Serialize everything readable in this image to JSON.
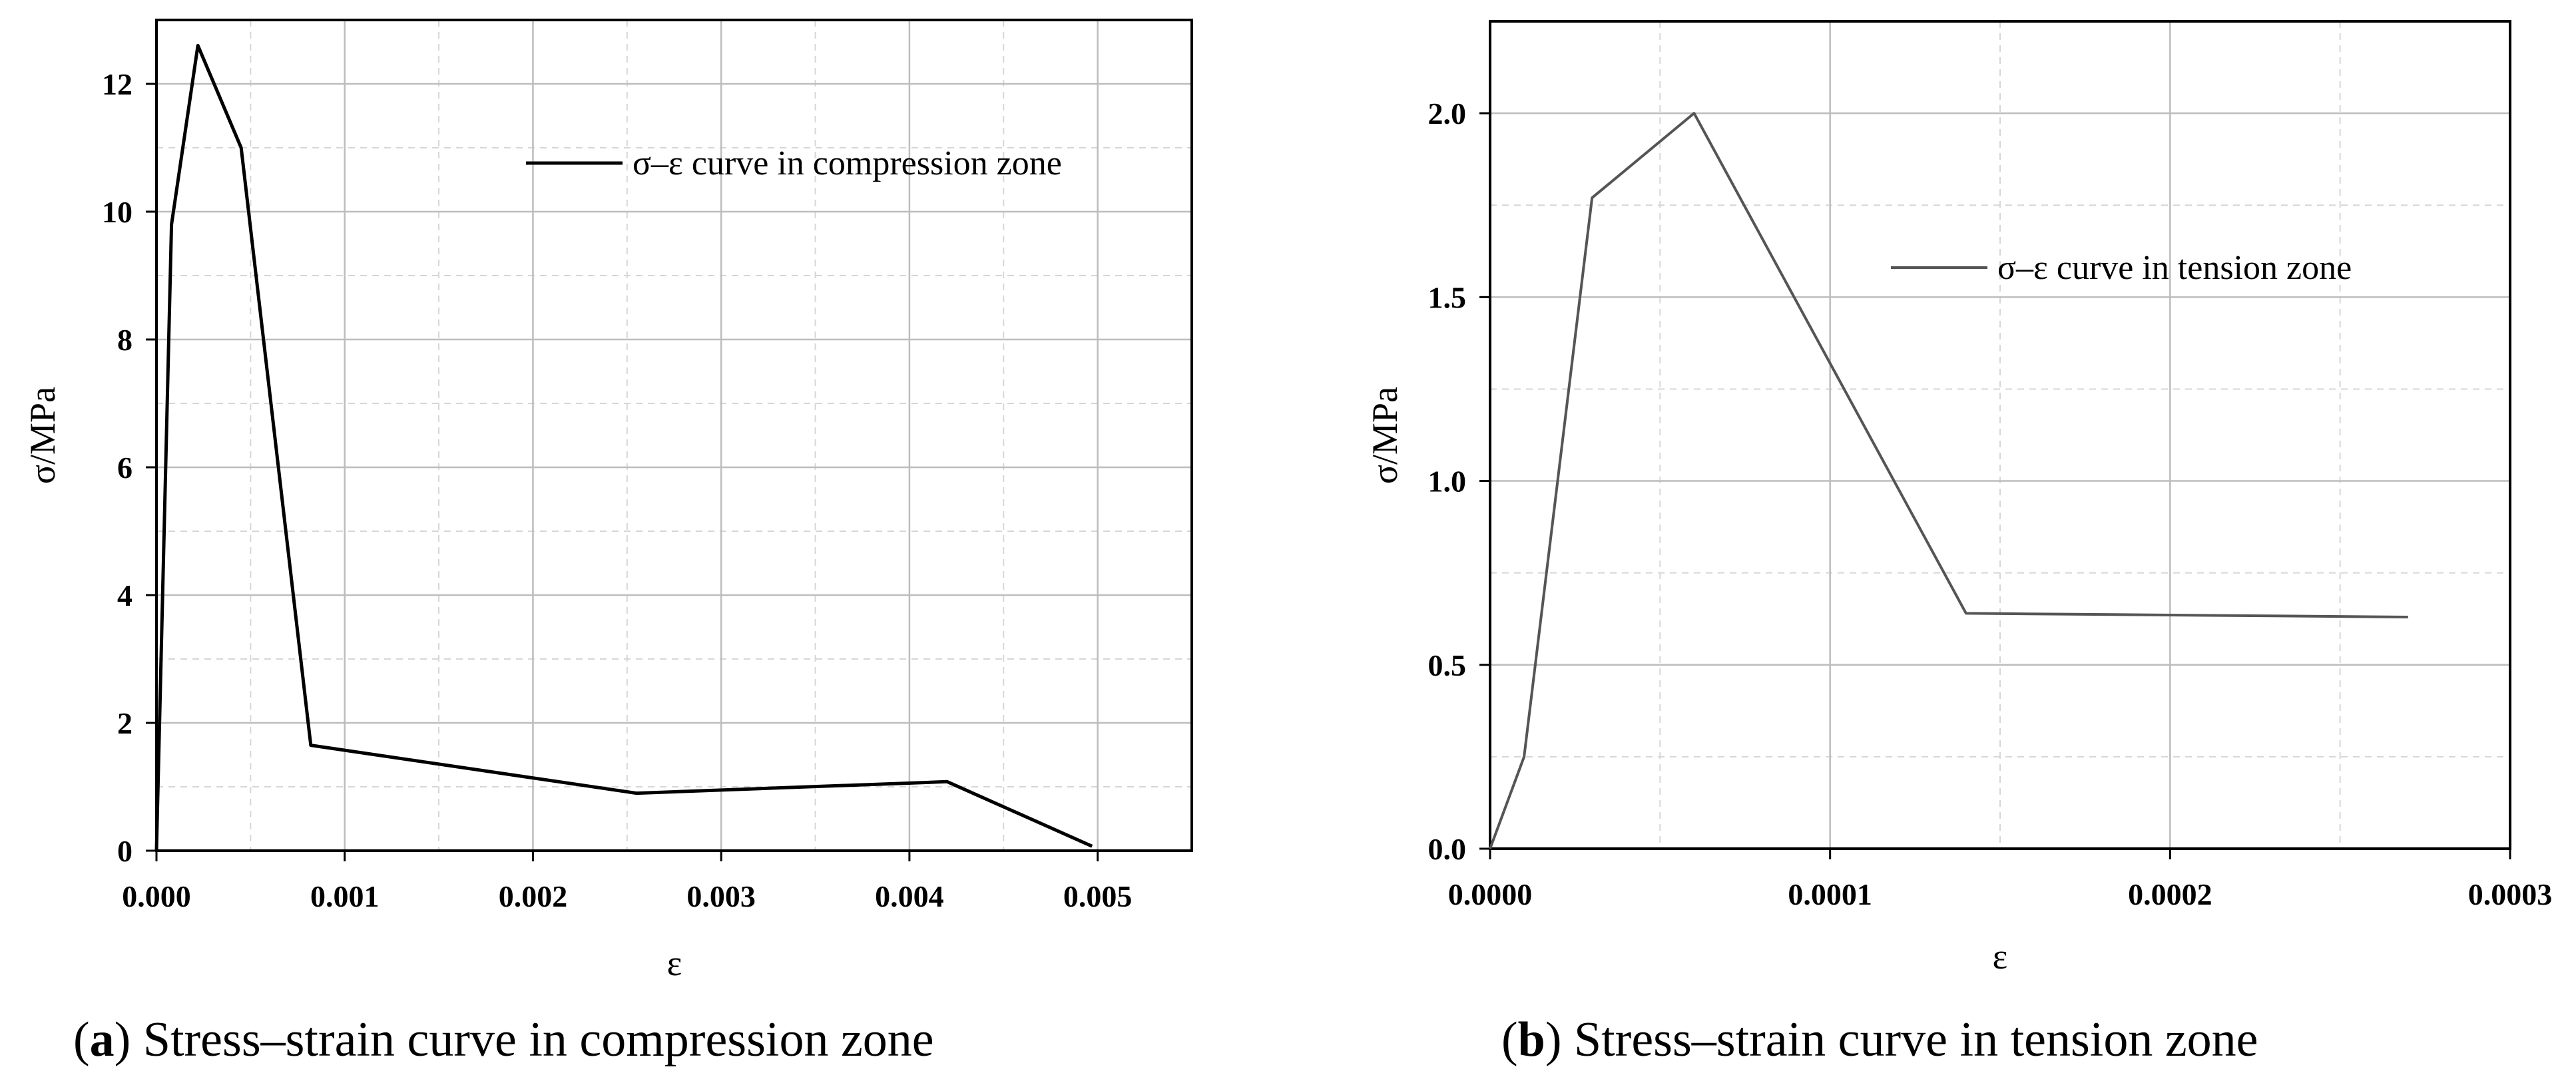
{
  "chart_data": [
    {
      "type": "line",
      "id": "a",
      "xlabel": "ε",
      "ylabel": "σ/MPa",
      "xlim": [
        0,
        0.0055
      ],
      "ylim": [
        0,
        13
      ],
      "xticks": [
        0,
        0.001,
        0.002,
        0.003,
        0.004,
        0.005
      ],
      "xtick_labels": [
        "0.000",
        "0.001",
        "0.002",
        "0.003",
        "0.004",
        "0.005"
      ],
      "yticks": [
        0,
        2,
        4,
        6,
        8,
        10,
        12
      ],
      "ytick_labels": [
        "0",
        "2",
        "4",
        "6",
        "8",
        "10",
        "12"
      ],
      "x_minor_grid": [
        0.0005,
        0.0015,
        0.0025,
        0.0035,
        0.0045
      ],
      "y_minor_grid": [
        1,
        3,
        5,
        7,
        9,
        11
      ],
      "grid": true,
      "legend_position": "top-right",
      "series": [
        {
          "name": "σ–ε curve in compression zone",
          "color": "#000000",
          "x": [
            0,
            8e-05,
            0.00022,
            0.00045,
            0.00082,
            0.00255,
            0.0042,
            0.00497
          ],
          "y": [
            0,
            9.8,
            12.6,
            11.0,
            1.65,
            0.9,
            1.08,
            0.07
          ]
        }
      ]
    },
    {
      "type": "line",
      "id": "b",
      "xlabel": "ε",
      "ylabel": "σ/MPa",
      "xlim": [
        0,
        0.0003
      ],
      "ylim": [
        0,
        2.25
      ],
      "xticks": [
        0,
        0.0001,
        0.0002,
        0.0003
      ],
      "xtick_labels": [
        "0.0000",
        "0.0001",
        "0.0002",
        "0.0003"
      ],
      "yticks": [
        0,
        0.5,
        1.0,
        1.5,
        2.0
      ],
      "ytick_labels": [
        "0.0",
        "0.5",
        "1.0",
        "1.5",
        "2.0"
      ],
      "x_minor_grid": [
        5e-05,
        0.00015,
        0.00025
      ],
      "y_minor_grid": [
        0.25,
        0.75,
        1.25,
        1.75
      ],
      "grid": true,
      "legend_position": "top-right",
      "series": [
        {
          "name": "σ–ε curve in tension zone",
          "color": "#555555",
          "x": [
            0,
            1e-05,
            3e-05,
            6e-05,
            0.00014,
            0.00027
          ],
          "y": [
            0,
            0.25,
            1.77,
            2.0,
            0.64,
            0.63
          ]
        }
      ]
    }
  ],
  "captions": [
    {
      "tag": "a",
      "open": "(",
      "close": ") ",
      "text": "Stress–strain curve in compression zone"
    },
    {
      "tag": "b",
      "open": "(",
      "close": ") ",
      "text": "Stress–strain curve in tension zone"
    }
  ]
}
